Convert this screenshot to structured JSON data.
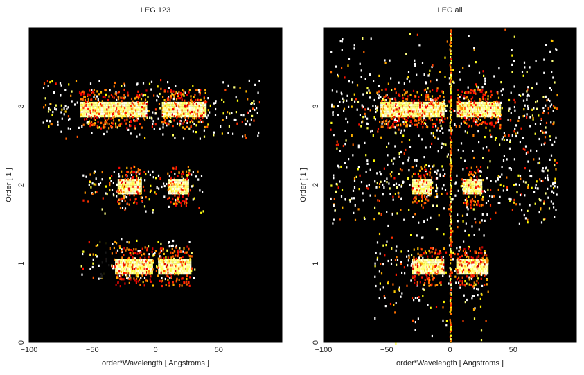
{
  "chart_data": [
    {
      "type": "heatmap",
      "title": "LEG 123",
      "xlabel": "order*Wavelength [ Angstroms ]",
      "ylabel": "Order [ 1 ]",
      "xlim": [
        -100,
        100
      ],
      "ylim": [
        0,
        4
      ],
      "xticks": [
        -100,
        -50,
        0,
        50
      ],
      "xtick_labels": [
        "−100",
        "−50",
        "0",
        "50"
      ],
      "yticks": [
        0,
        1,
        2,
        3
      ],
      "ytick_labels": [
        "0",
        "1",
        "2",
        "3"
      ],
      "colormap": "black-red-yellow-white (heat)",
      "background": "#000000",
      "features": [
        {
          "order_band": [
            0.82,
            1.35
          ],
          "x_range": [
            -60,
            32
          ],
          "core_y": 0.98,
          "core_x": [
            [
              -32,
              -3
            ],
            [
              2,
              28
            ]
          ],
          "gap_x": [
            -44,
            -36
          ]
        },
        {
          "order_band": [
            1.65,
            2.2
          ],
          "x_range": [
            -58,
            38
          ],
          "core_y": 2.0,
          "core_x": [
            [
              -30,
              -12
            ],
            [
              10,
              26
            ]
          ]
        },
        {
          "order_band": [
            2.6,
            3.35
          ],
          "x_range": [
            -90,
            82
          ],
          "core_y": 2.98,
          "core_x": [
            [
              -60,
              -7
            ],
            [
              5,
              40
            ]
          ]
        }
      ]
    },
    {
      "type": "heatmap",
      "title": "LEG all",
      "xlabel": "order*Wavelength [ Angstroms ]",
      "ylabel": "Order [ 1 ]",
      "xlim": [
        -100,
        100
      ],
      "ylim": [
        0,
        4
      ],
      "xticks": [
        -100,
        -50,
        0,
        50
      ],
      "xtick_labels": [
        "−100",
        "−50",
        "0",
        "50"
      ],
      "yticks": [
        0,
        1,
        2,
        3
      ],
      "ytick_labels": [
        "0",
        "1",
        "2",
        "3"
      ],
      "colormap": "black-red-yellow-white (heat)",
      "background": "#000000",
      "features": [
        {
          "order_band": [
            0.0,
            1.5
          ],
          "x_range": [
            -60,
            30
          ],
          "core_y": 0.98,
          "core_x": [
            [
              -30,
              -5
            ],
            [
              5,
              30
            ]
          ]
        },
        {
          "order_band": [
            1.5,
            4.0
          ],
          "x_range": [
            -95,
            85
          ],
          "core_y": 2.0,
          "core_x": [
            [
              -30,
              -15
            ],
            [
              10,
              25
            ]
          ]
        },
        {
          "order_band": [
            2.5,
            4.0
          ],
          "x_range": [
            -95,
            85
          ],
          "core_y": 2.98,
          "core_x": [
            [
              -55,
              -5
            ],
            [
              5,
              40
            ]
          ]
        },
        {
          "zero_order_line_x": 0
        }
      ]
    }
  ]
}
